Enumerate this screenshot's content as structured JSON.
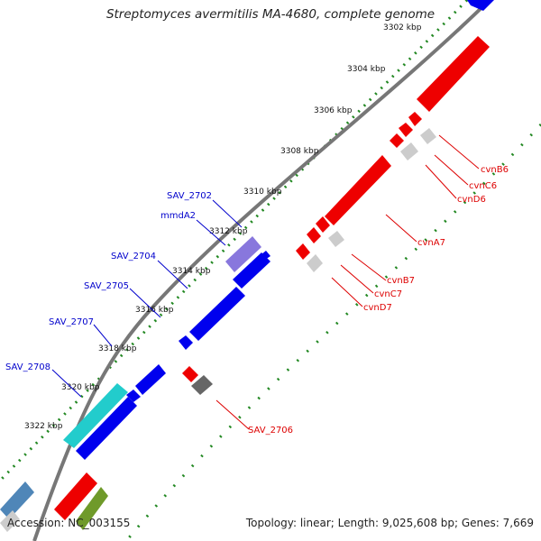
{
  "title": "Streptomyces avermitilis MA-4680, complete genome",
  "footer": {
    "accession": "Accession: NC_003155",
    "summary": "Topology: linear; Length: 9,025,608 bp; Genes: 7,669"
  },
  "colors": {
    "forward_cds": "#0000ee",
    "reverse_cds": "#ee0000",
    "rna_gray": "#cccccc",
    "dark_gray": "#666666",
    "cyan": "#22cccc",
    "lavender": "#8877dd",
    "steelblue": "#4f86b8",
    "olive": "#6f9a2a",
    "tick_green": "#228822",
    "backbone": "#777777",
    "label_blue": "#0000cc",
    "label_red": "#dd0000"
  },
  "ticks": [
    {
      "label": "3302 kbp"
    },
    {
      "label": "3304 kbp"
    },
    {
      "label": "3306 kbp"
    },
    {
      "label": "3308 kbp"
    },
    {
      "label": "3310 kbp"
    },
    {
      "label": "3312 kbp"
    },
    {
      "label": "3314 kbp"
    },
    {
      "label": "3316 kbp"
    },
    {
      "label": "3318 kbp"
    },
    {
      "label": "3320 kbp"
    },
    {
      "label": "3322 kbp"
    }
  ],
  "blue_labels": [
    {
      "text": "SAV_2702"
    },
    {
      "text": "mmdA2"
    },
    {
      "text": "SAV_2704"
    },
    {
      "text": "SAV_2705"
    },
    {
      "text": "SAV_2707"
    },
    {
      "text": "SAV_2708"
    }
  ],
  "red_labels": [
    {
      "text": "cvnB6"
    },
    {
      "text": "cvnC6"
    },
    {
      "text": "cvnD6"
    },
    {
      "text": "cvnA7"
    },
    {
      "text": "cvnB7"
    },
    {
      "text": "cvnC7"
    },
    {
      "text": "cvnD7"
    },
    {
      "text": "SAV_2706"
    }
  ]
}
